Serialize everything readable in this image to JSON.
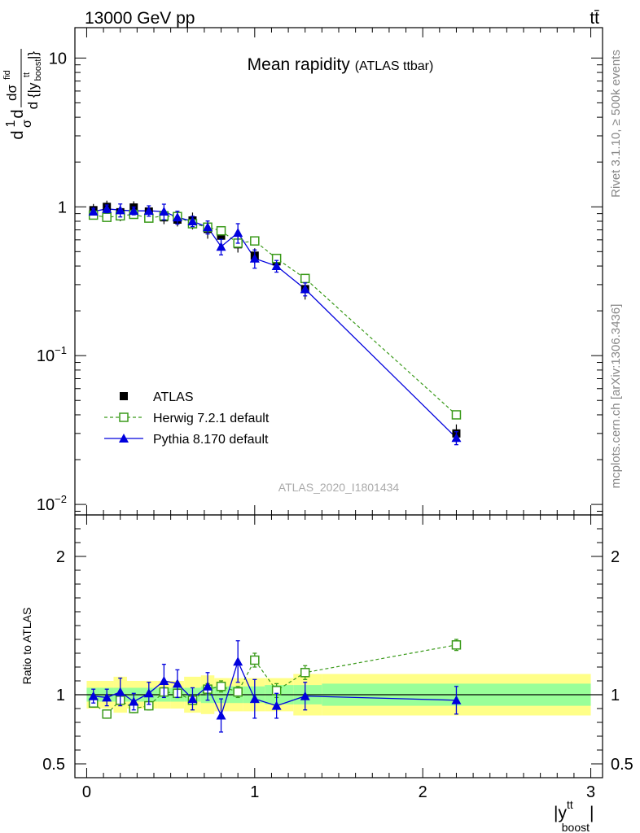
{
  "header": {
    "energy_label": "13000 GeV pp",
    "process_label": "tt̄"
  },
  "main_panel": {
    "title": "Mean rapidity",
    "title_sub": "(ATLAS ttbar)",
    "watermark": "ATLAS_2020_I1801434",
    "ylabel_lines": [
      "d",
      "1",
      "σ",
      "d",
      "dσ",
      "fid",
      "d {|y",
      "tt",
      "boost",
      "|}"
    ]
  },
  "side_labels": {
    "rivet": "Rivet 3.1.10, ≥ 500k events",
    "mcplots": "mcplots.cern.ch [arXiv:1306.3436]"
  },
  "ratio_panel": {
    "ylabel": "Ratio to ATLAS"
  },
  "x_axis": {
    "label_main": "|y",
    "label_sup": "tt",
    "label_sub": "boost",
    "label_close": "|"
  },
  "legend": [
    {
      "name": "ATLAS",
      "color": "#000000"
    },
    {
      "name": "Herwig 7.2.1 default",
      "color": "#3a9a1a"
    },
    {
      "name": "Pythia 8.170 default",
      "color": "#0000dd"
    }
  ],
  "chart_data": {
    "type": "line",
    "x_range": [
      -0.07,
      3.07
    ],
    "main": {
      "yscale": "log",
      "ylim": [
        0.0085,
        16
      ],
      "yticks": [
        {
          "value": 10,
          "base": "10",
          "exp": ""
        },
        {
          "value": 1,
          "base": "1",
          "exp": ""
        },
        {
          "value": 0.1,
          "base": "10",
          "exp": "−1"
        },
        {
          "value": 0.01,
          "base": "10",
          "exp": "−2"
        }
      ]
    },
    "ratio": {
      "ylim": [
        0.4,
        2.3
      ],
      "yticks": [
        {
          "value": 2,
          "label": "2"
        },
        {
          "value": 1,
          "label": "1"
        },
        {
          "value": 0.5,
          "label": "0.5"
        }
      ]
    },
    "xticks": [
      {
        "value": 0,
        "label": "0"
      },
      {
        "value": 1,
        "label": "1"
      },
      {
        "value": 2,
        "label": "2"
      },
      {
        "value": 3,
        "label": "3"
      }
    ],
    "bins": [
      {
        "lo": 0.0,
        "hi": 0.08,
        "x": 0.04
      },
      {
        "lo": 0.08,
        "hi": 0.16,
        "x": 0.12
      },
      {
        "lo": 0.16,
        "hi": 0.24,
        "x": 0.2
      },
      {
        "lo": 0.24,
        "hi": 0.32,
        "x": 0.28
      },
      {
        "lo": 0.32,
        "hi": 0.42,
        "x": 0.37
      },
      {
        "lo": 0.42,
        "hi": 0.5,
        "x": 0.46
      },
      {
        "lo": 0.5,
        "hi": 0.58,
        "x": 0.54
      },
      {
        "lo": 0.58,
        "hi": 0.68,
        "x": 0.63
      },
      {
        "lo": 0.68,
        "hi": 0.76,
        "x": 0.72
      },
      {
        "lo": 0.76,
        "hi": 0.85,
        "x": 0.8
      },
      {
        "lo": 0.85,
        "hi": 0.93,
        "x": 0.9
      },
      {
        "lo": 0.93,
        "hi": 1.06,
        "x": 1.0
      },
      {
        "lo": 1.06,
        "hi": 1.23,
        "x": 1.13
      },
      {
        "lo": 1.23,
        "hi": 1.4,
        "x": 1.3
      },
      {
        "lo": 1.4,
        "hi": 3.0,
        "x": 2.2
      }
    ],
    "atlas": {
      "values": [
        0.95,
        1.0,
        0.92,
        0.99,
        0.93,
        0.85,
        0.82,
        0.81,
        0.71,
        0.64,
        0.56,
        0.47,
        0.43,
        0.28,
        0.03
      ],
      "stat_band": [
        0.05,
        0.05,
        0.05,
        0.05,
        0.05,
        0.05,
        0.05,
        0.05,
        0.06,
        0.06,
        0.06,
        0.06,
        0.07,
        0.07,
        0.08
      ],
      "total_band": [
        0.1,
        0.1,
        0.13,
        0.1,
        0.1,
        0.1,
        0.1,
        0.13,
        0.14,
        0.12,
        0.12,
        0.12,
        0.12,
        0.15,
        0.15
      ]
    },
    "series": [
      {
        "name": "Herwig 7.2.1 default",
        "values": [
          0.88,
          0.85,
          0.87,
          0.89,
          0.84,
          0.87,
          0.86,
          0.77,
          0.73,
          0.69,
          0.57,
          0.59,
          0.45,
          0.33,
          0.04
        ],
        "ratio": [
          0.94,
          0.86,
          0.96,
          0.9,
          0.92,
          1.02,
          1.01,
          0.96,
          1.04,
          1.06,
          1.02,
          1.25,
          1.03,
          1.16,
          1.36
        ],
        "ratio_err": [
          0.03,
          0.03,
          0.03,
          0.03,
          0.03,
          0.03,
          0.03,
          0.03,
          0.04,
          0.04,
          0.04,
          0.05,
          0.05,
          0.05,
          0.04
        ]
      },
      {
        "name": "Pythia 8.170 default",
        "values": [
          0.93,
          0.97,
          0.95,
          0.94,
          0.94,
          0.93,
          0.85,
          0.8,
          0.73,
          0.54,
          0.67,
          0.45,
          0.4,
          0.28,
          0.028
        ],
        "ratio": [
          0.99,
          0.98,
          1.02,
          0.95,
          1.01,
          1.1,
          1.08,
          0.97,
          1.06,
          0.85,
          1.24,
          0.97,
          0.92,
          0.99,
          0.96
        ],
        "ratio_err": [
          0.05,
          0.06,
          0.1,
          0.06,
          0.08,
          0.12,
          0.1,
          0.08,
          0.1,
          0.12,
          0.15,
          0.14,
          0.09,
          0.1,
          0.1
        ]
      }
    ]
  }
}
